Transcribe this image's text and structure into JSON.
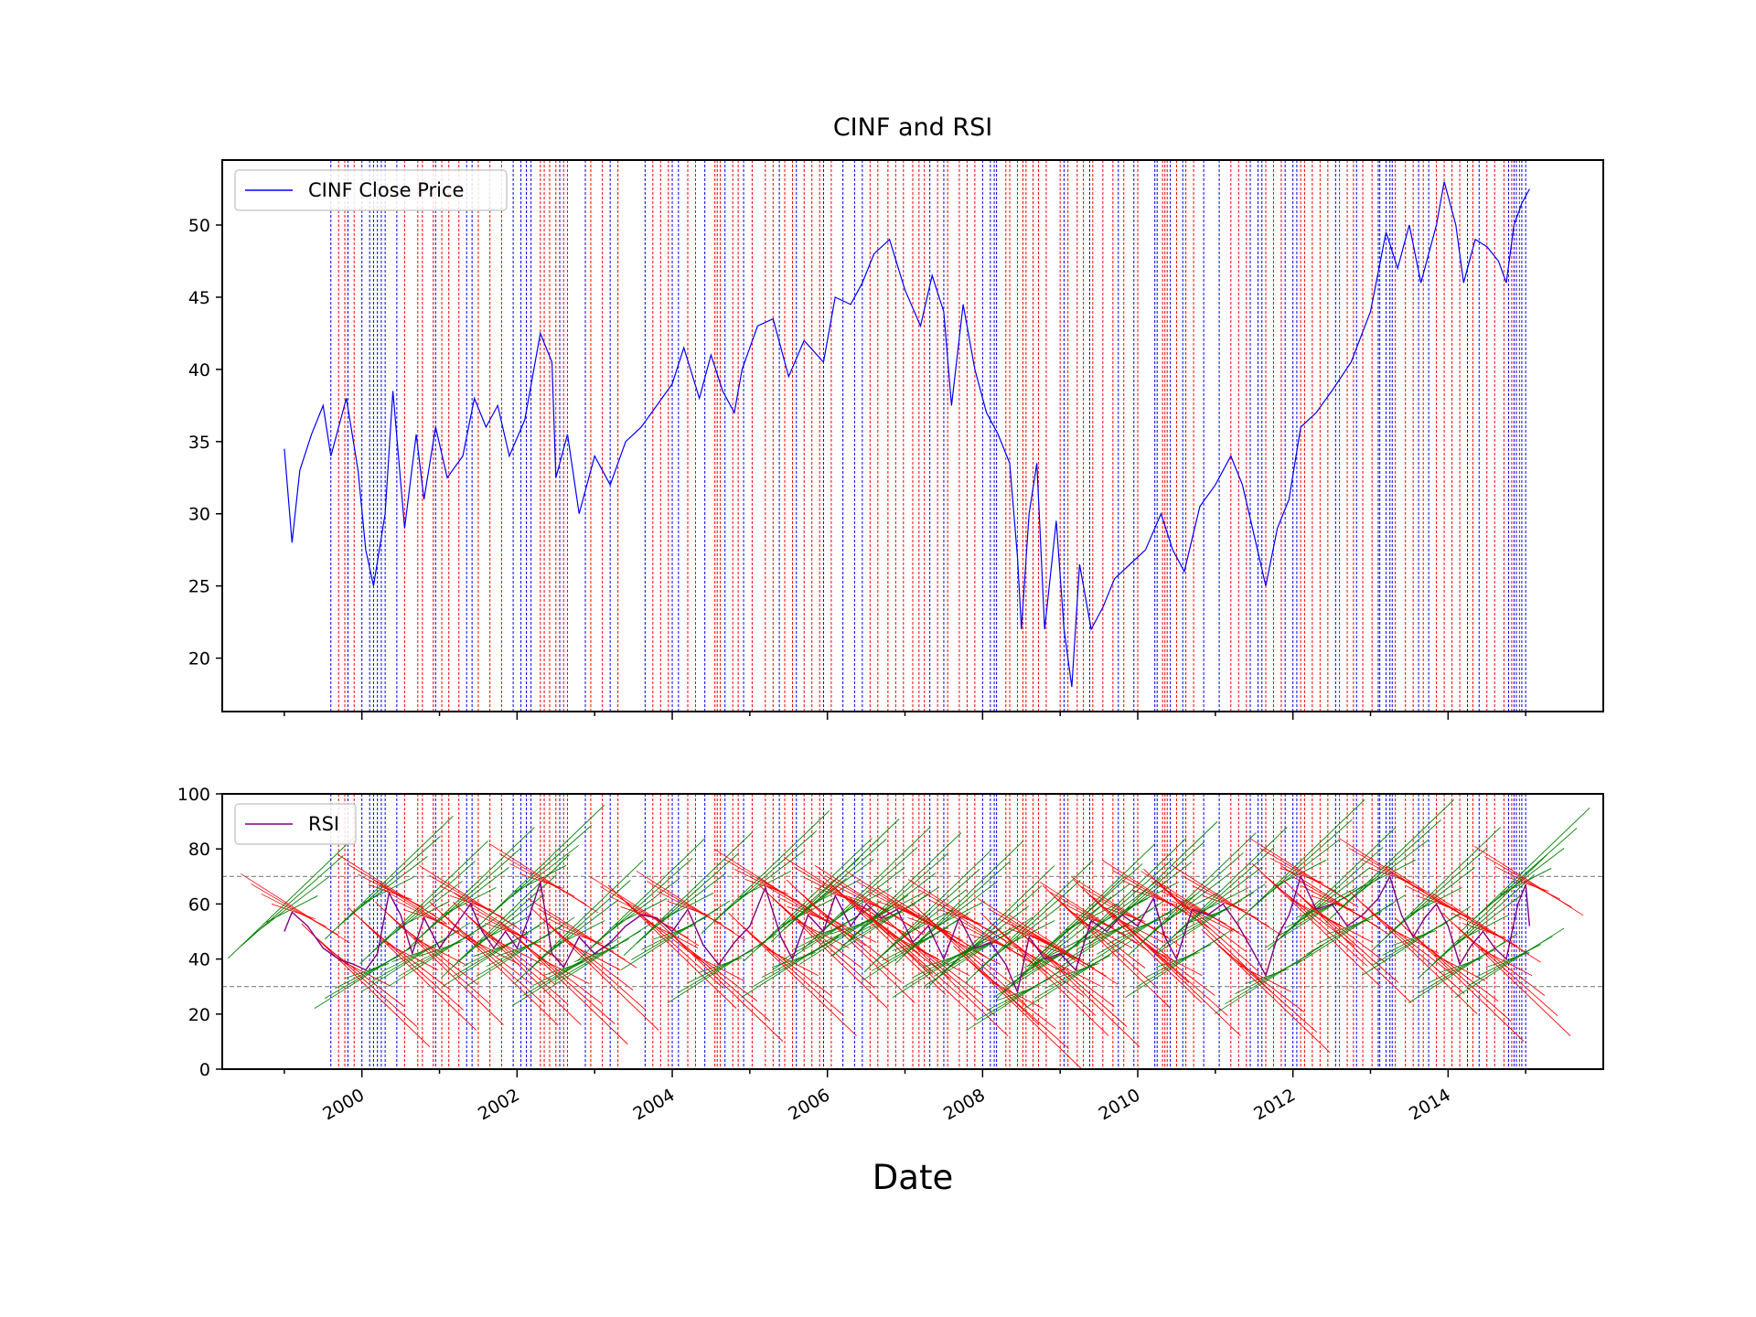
{
  "chart_data": {
    "type": "line",
    "title": "CINF and RSI",
    "xlabel": "Date",
    "colors": {
      "price": "#0000ff",
      "rsi": "#800080",
      "buy_signal": "#ff0000",
      "sell_signal": "#0000ff",
      "up_fan": "#008000",
      "down_fan": "#ff0000",
      "threshold": "#808080"
    },
    "x_range": [
      1998.2,
      2016.0
    ],
    "x_ticks": [
      {
        "value": 2000,
        "label": "2000"
      },
      {
        "value": 2002,
        "label": "2002"
      },
      {
        "value": 2004,
        "label": "2004"
      },
      {
        "value": 2006,
        "label": "2006"
      },
      {
        "value": 2008,
        "label": "2008"
      },
      {
        "value": 2010,
        "label": "2010"
      },
      {
        "value": 2012,
        "label": "2012"
      },
      {
        "value": 2014,
        "label": "2014"
      }
    ],
    "price_panel": {
      "legend": "CINF Close Price",
      "legend_position": "upper-left",
      "ylim": [
        16.3,
        54.5
      ],
      "y_ticks": [
        {
          "value": 20,
          "label": "20"
        },
        {
          "value": 25,
          "label": "25"
        },
        {
          "value": 30,
          "label": "30"
        },
        {
          "value": 35,
          "label": "35"
        },
        {
          "value": 40,
          "label": "40"
        },
        {
          "value": 45,
          "label": "45"
        },
        {
          "value": 50,
          "label": "50"
        }
      ],
      "series": [
        {
          "x": 1999.0,
          "y": 34.5
        },
        {
          "x": 1999.1,
          "y": 28.0
        },
        {
          "x": 1999.2,
          "y": 33.0
        },
        {
          "x": 1999.35,
          "y": 35.5
        },
        {
          "x": 1999.5,
          "y": 37.5
        },
        {
          "x": 1999.6,
          "y": 34.0
        },
        {
          "x": 1999.8,
          "y": 38.0
        },
        {
          "x": 1999.95,
          "y": 33.0
        },
        {
          "x": 2000.05,
          "y": 27.5
        },
        {
          "x": 2000.15,
          "y": 25.0
        },
        {
          "x": 2000.3,
          "y": 30.0
        },
        {
          "x": 2000.4,
          "y": 38.5
        },
        {
          "x": 2000.55,
          "y": 29.0
        },
        {
          "x": 2000.7,
          "y": 35.5
        },
        {
          "x": 2000.8,
          "y": 31.0
        },
        {
          "x": 2000.95,
          "y": 36.0
        },
        {
          "x": 2001.1,
          "y": 32.5
        },
        {
          "x": 2001.3,
          "y": 34.0
        },
        {
          "x": 2001.45,
          "y": 38.0
        },
        {
          "x": 2001.6,
          "y": 36.0
        },
        {
          "x": 2001.75,
          "y": 37.5
        },
        {
          "x": 2001.9,
          "y": 34.0
        },
        {
          "x": 2002.1,
          "y": 36.5
        },
        {
          "x": 2002.3,
          "y": 42.5
        },
        {
          "x": 2002.45,
          "y": 40.5
        },
        {
          "x": 2002.5,
          "y": 32.5
        },
        {
          "x": 2002.65,
          "y": 35.5
        },
        {
          "x": 2002.8,
          "y": 30.0
        },
        {
          "x": 2003.0,
          "y": 34.0
        },
        {
          "x": 2003.2,
          "y": 32.0
        },
        {
          "x": 2003.4,
          "y": 35.0
        },
        {
          "x": 2003.6,
          "y": 36.0
        },
        {
          "x": 2003.8,
          "y": 37.5
        },
        {
          "x": 2004.0,
          "y": 39.0
        },
        {
          "x": 2004.15,
          "y": 41.5
        },
        {
          "x": 2004.35,
          "y": 38.0
        },
        {
          "x": 2004.5,
          "y": 41.0
        },
        {
          "x": 2004.65,
          "y": 38.5
        },
        {
          "x": 2004.8,
          "y": 37.0
        },
        {
          "x": 2004.9,
          "y": 40.0
        },
        {
          "x": 2005.1,
          "y": 43.0
        },
        {
          "x": 2005.3,
          "y": 43.5
        },
        {
          "x": 2005.5,
          "y": 39.5
        },
        {
          "x": 2005.7,
          "y": 42.0
        },
        {
          "x": 2005.95,
          "y": 40.5
        },
        {
          "x": 2006.1,
          "y": 45.0
        },
        {
          "x": 2006.3,
          "y": 44.5
        },
        {
          "x": 2006.45,
          "y": 46.0
        },
        {
          "x": 2006.6,
          "y": 48.0
        },
        {
          "x": 2006.8,
          "y": 49.0
        },
        {
          "x": 2007.0,
          "y": 45.5
        },
        {
          "x": 2007.2,
          "y": 43.0
        },
        {
          "x": 2007.35,
          "y": 46.5
        },
        {
          "x": 2007.5,
          "y": 44.0
        },
        {
          "x": 2007.6,
          "y": 37.5
        },
        {
          "x": 2007.75,
          "y": 44.5
        },
        {
          "x": 2007.9,
          "y": 40.0
        },
        {
          "x": 2008.05,
          "y": 37.0
        },
        {
          "x": 2008.2,
          "y": 35.5
        },
        {
          "x": 2008.35,
          "y": 33.5
        },
        {
          "x": 2008.45,
          "y": 27.0
        },
        {
          "x": 2008.5,
          "y": 22.0
        },
        {
          "x": 2008.6,
          "y": 30.0
        },
        {
          "x": 2008.7,
          "y": 33.5
        },
        {
          "x": 2008.8,
          "y": 22.0
        },
        {
          "x": 2008.95,
          "y": 29.5
        },
        {
          "x": 2009.05,
          "y": 22.0
        },
        {
          "x": 2009.15,
          "y": 18.0
        },
        {
          "x": 2009.25,
          "y": 26.5
        },
        {
          "x": 2009.4,
          "y": 22.0
        },
        {
          "x": 2009.55,
          "y": 23.5
        },
        {
          "x": 2009.7,
          "y": 25.5
        },
        {
          "x": 2009.9,
          "y": 26.5
        },
        {
          "x": 2010.1,
          "y": 27.5
        },
        {
          "x": 2010.3,
          "y": 30.0
        },
        {
          "x": 2010.45,
          "y": 27.5
        },
        {
          "x": 2010.6,
          "y": 26.0
        },
        {
          "x": 2010.8,
          "y": 30.5
        },
        {
          "x": 2011.0,
          "y": 32.0
        },
        {
          "x": 2011.2,
          "y": 34.0
        },
        {
          "x": 2011.35,
          "y": 32.0
        },
        {
          "x": 2011.5,
          "y": 28.5
        },
        {
          "x": 2011.65,
          "y": 25.0
        },
        {
          "x": 2011.8,
          "y": 29.0
        },
        {
          "x": 2011.95,
          "y": 31.0
        },
        {
          "x": 2012.1,
          "y": 36.0
        },
        {
          "x": 2012.3,
          "y": 37.0
        },
        {
          "x": 2012.5,
          "y": 38.5
        },
        {
          "x": 2012.75,
          "y": 40.5
        },
        {
          "x": 2013.0,
          "y": 44.0
        },
        {
          "x": 2013.2,
          "y": 49.5
        },
        {
          "x": 2013.35,
          "y": 47.0
        },
        {
          "x": 2013.5,
          "y": 50.0
        },
        {
          "x": 2013.65,
          "y": 46.0
        },
        {
          "x": 2013.85,
          "y": 50.0
        },
        {
          "x": 2013.95,
          "y": 53.0
        },
        {
          "x": 2014.1,
          "y": 50.0
        },
        {
          "x": 2014.2,
          "y": 46.0
        },
        {
          "x": 2014.35,
          "y": 49.0
        },
        {
          "x": 2014.5,
          "y": 48.5
        },
        {
          "x": 2014.65,
          "y": 47.5
        },
        {
          "x": 2014.75,
          "y": 46.0
        },
        {
          "x": 2014.85,
          "y": 50.0
        },
        {
          "x": 2014.95,
          "y": 51.5
        },
        {
          "x": 2015.05,
          "y": 52.5
        }
      ]
    },
    "rsi_panel": {
      "legend": "RSI",
      "legend_position": "upper-left",
      "ylim": [
        0,
        100
      ],
      "y_ticks": [
        {
          "value": 0,
          "label": "0"
        },
        {
          "value": 20,
          "label": "20"
        },
        {
          "value": 40,
          "label": "40"
        },
        {
          "value": 60,
          "label": "60"
        },
        {
          "value": 80,
          "label": "80"
        },
        {
          "value": 100,
          "label": "100"
        }
      ],
      "thresholds": [
        30,
        70
      ],
      "series": [
        {
          "x": 1999.0,
          "y": 50
        },
        {
          "x": 1999.1,
          "y": 57
        },
        {
          "x": 1999.3,
          "y": 52
        },
        {
          "x": 1999.5,
          "y": 44
        },
        {
          "x": 1999.7,
          "y": 40
        },
        {
          "x": 1999.9,
          "y": 38
        },
        {
          "x": 2000.05,
          "y": 36
        },
        {
          "x": 2000.2,
          "y": 42
        },
        {
          "x": 2000.35,
          "y": 64
        },
        {
          "x": 2000.5,
          "y": 56
        },
        {
          "x": 2000.65,
          "y": 42
        },
        {
          "x": 2000.8,
          "y": 55
        },
        {
          "x": 2001.0,
          "y": 44
        },
        {
          "x": 2001.2,
          "y": 52
        },
        {
          "x": 2001.4,
          "y": 60
        },
        {
          "x": 2001.55,
          "y": 50
        },
        {
          "x": 2001.7,
          "y": 44
        },
        {
          "x": 2001.85,
          "y": 50
        },
        {
          "x": 2002.0,
          "y": 44
        },
        {
          "x": 2002.15,
          "y": 55
        },
        {
          "x": 2002.3,
          "y": 68
        },
        {
          "x": 2002.45,
          "y": 42
        },
        {
          "x": 2002.6,
          "y": 37
        },
        {
          "x": 2002.8,
          "y": 48
        },
        {
          "x": 2003.0,
          "y": 42
        },
        {
          "x": 2003.2,
          "y": 46
        },
        {
          "x": 2003.4,
          "y": 52
        },
        {
          "x": 2003.6,
          "y": 56
        },
        {
          "x": 2003.8,
          "y": 55
        },
        {
          "x": 2004.0,
          "y": 50
        },
        {
          "x": 2004.2,
          "y": 58
        },
        {
          "x": 2004.4,
          "y": 45
        },
        {
          "x": 2004.6,
          "y": 38
        },
        {
          "x": 2004.8,
          "y": 46
        },
        {
          "x": 2005.0,
          "y": 52
        },
        {
          "x": 2005.2,
          "y": 66
        },
        {
          "x": 2005.4,
          "y": 48
        },
        {
          "x": 2005.55,
          "y": 40
        },
        {
          "x": 2005.75,
          "y": 56
        },
        {
          "x": 2005.95,
          "y": 50
        },
        {
          "x": 2006.1,
          "y": 63
        },
        {
          "x": 2006.3,
          "y": 52
        },
        {
          "x": 2006.5,
          "y": 60
        },
        {
          "x": 2006.7,
          "y": 55
        },
        {
          "x": 2006.9,
          "y": 58
        },
        {
          "x": 2007.1,
          "y": 46
        },
        {
          "x": 2007.3,
          "y": 52
        },
        {
          "x": 2007.5,
          "y": 40
        },
        {
          "x": 2007.7,
          "y": 55
        },
        {
          "x": 2007.9,
          "y": 44
        },
        {
          "x": 2008.1,
          "y": 46
        },
        {
          "x": 2008.3,
          "y": 38
        },
        {
          "x": 2008.45,
          "y": 28
        },
        {
          "x": 2008.6,
          "y": 48
        },
        {
          "x": 2008.8,
          "y": 40
        },
        {
          "x": 2009.0,
          "y": 42
        },
        {
          "x": 2009.2,
          "y": 36
        },
        {
          "x": 2009.4,
          "y": 54
        },
        {
          "x": 2009.6,
          "y": 50
        },
        {
          "x": 2009.8,
          "y": 56
        },
        {
          "x": 2010.0,
          "y": 52
        },
        {
          "x": 2010.2,
          "y": 62
        },
        {
          "x": 2010.35,
          "y": 48
        },
        {
          "x": 2010.5,
          "y": 40
        },
        {
          "x": 2010.7,
          "y": 58
        },
        {
          "x": 2010.9,
          "y": 56
        },
        {
          "x": 2011.1,
          "y": 60
        },
        {
          "x": 2011.3,
          "y": 52
        },
        {
          "x": 2011.5,
          "y": 42
        },
        {
          "x": 2011.65,
          "y": 34
        },
        {
          "x": 2011.8,
          "y": 48
        },
        {
          "x": 2011.95,
          "y": 56
        },
        {
          "x": 2012.1,
          "y": 70
        },
        {
          "x": 2012.3,
          "y": 58
        },
        {
          "x": 2012.5,
          "y": 60
        },
        {
          "x": 2012.7,
          "y": 52
        },
        {
          "x": 2012.9,
          "y": 56
        },
        {
          "x": 2013.1,
          "y": 62
        },
        {
          "x": 2013.25,
          "y": 70
        },
        {
          "x": 2013.4,
          "y": 56
        },
        {
          "x": 2013.55,
          "y": 48
        },
        {
          "x": 2013.7,
          "y": 55
        },
        {
          "x": 2013.85,
          "y": 60
        },
        {
          "x": 2014.0,
          "y": 52
        },
        {
          "x": 2014.15,
          "y": 38
        },
        {
          "x": 2014.3,
          "y": 45
        },
        {
          "x": 2014.45,
          "y": 50
        },
        {
          "x": 2014.6,
          "y": 44
        },
        {
          "x": 2014.75,
          "y": 40
        },
        {
          "x": 2014.9,
          "y": 60
        },
        {
          "x": 2015.0,
          "y": 67
        },
        {
          "x": 2015.05,
          "y": 52
        }
      ]
    },
    "signal_lines": {
      "buy": [
        1999.7,
        1999.78,
        1999.9,
        2000.55,
        2000.72,
        2000.78,
        2000.92,
        2001.03,
        2001.12,
        2001.25,
        2001.5,
        2001.65,
        2001.8,
        2002.3,
        2002.35,
        2002.42,
        2002.5,
        2002.6,
        2002.65,
        2002.95,
        2003.1,
        2003.3,
        2003.75,
        2003.85,
        2003.95,
        2004.2,
        2004.3,
        2004.55,
        2004.58,
        2004.62,
        2004.78,
        2004.85,
        2005.03,
        2005.2,
        2005.3,
        2005.45,
        2005.55,
        2005.7,
        2005.8,
        2005.9,
        2006.05,
        2006.55,
        2006.65,
        2006.78,
        2006.88,
        2006.98,
        2007.1,
        2007.18,
        2007.25,
        2007.42,
        2007.55,
        2007.7,
        2007.8,
        2007.9,
        2008.3,
        2008.35,
        2008.45,
        2008.52,
        2008.56,
        2008.65,
        2008.72,
        2008.82,
        2009.0,
        2009.1,
        2009.22,
        2009.3,
        2009.42,
        2009.55,
        2009.68,
        2009.82,
        2010.0,
        2010.32,
        2010.35,
        2010.38,
        2010.5,
        2010.62,
        2010.72,
        2011.2,
        2011.3,
        2011.4,
        2011.65,
        2011.75,
        2011.85,
        2012.1,
        2012.15,
        2012.25,
        2012.35,
        2012.45,
        2012.6,
        2012.7,
        2012.78,
        2012.9,
        2013.02,
        2013.32,
        2013.45,
        2013.55,
        2013.68,
        2013.85,
        2013.95,
        2014.05,
        2014.15,
        2014.32,
        2014.5,
        2014.6,
        2014.72,
        2014.82,
        2014.92
      ],
      "sell": [
        1999.6,
        1999.82,
        2000.0,
        2000.1,
        2000.15,
        2000.2,
        2000.25,
        2000.3,
        2000.45,
        2000.95,
        2001.35,
        2001.42,
        2001.95,
        2002.05,
        2002.12,
        2002.18,
        2002.55,
        2002.88,
        2003.2,
        2003.65,
        2004.0,
        2004.08,
        2004.42,
        2004.68,
        2004.92,
        2005.38,
        2005.6,
        2005.95,
        2006.2,
        2006.35,
        2006.45,
        2007.32,
        2007.5,
        2008.0,
        2008.1,
        2008.15,
        2008.18,
        2009.05,
        2009.38,
        2009.75,
        2009.95,
        2010.22,
        2010.25,
        2010.42,
        2010.58,
        2010.85,
        2011.05,
        2011.45,
        2011.55,
        2011.6,
        2011.9,
        2012.0,
        2012.05,
        2012.55,
        2012.82,
        2013.1,
        2013.12,
        2013.2,
        2013.25,
        2013.28,
        2013.62,
        2013.75,
        2014.25,
        2014.4,
        2014.78,
        2014.85,
        2014.88,
        2014.95,
        2015.0
      ]
    }
  }
}
